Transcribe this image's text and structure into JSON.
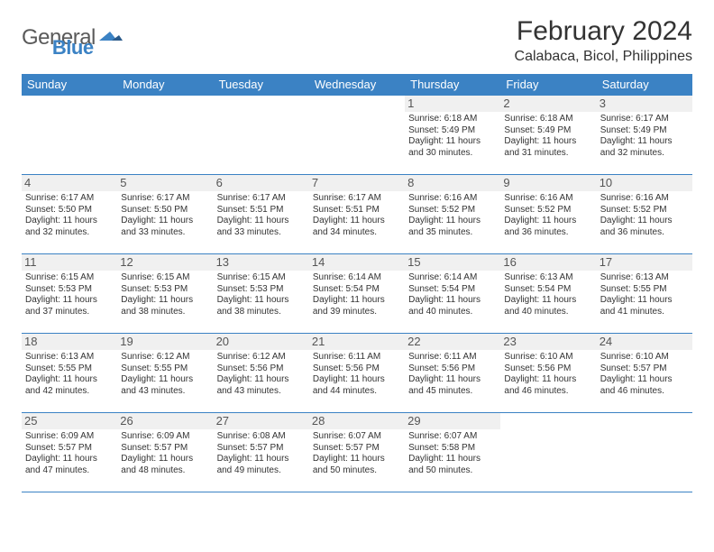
{
  "logo": {
    "text1": "General",
    "text2": "Blue"
  },
  "title": "February 2024",
  "location": "Calabaca, Bicol, Philippines",
  "headers": [
    "Sunday",
    "Monday",
    "Tuesday",
    "Wednesday",
    "Thursday",
    "Friday",
    "Saturday"
  ],
  "colors": {
    "headerBg": "#3b82c4",
    "headerText": "#ffffff",
    "border": "#3b82c4",
    "dayNumBg": "#f0f0f0",
    "text": "#333333"
  },
  "weeks": [
    [
      null,
      null,
      null,
      null,
      {
        "n": "1",
        "sr": "Sunrise: 6:18 AM",
        "ss": "Sunset: 5:49 PM",
        "dl": "Daylight: 11 hours and 30 minutes."
      },
      {
        "n": "2",
        "sr": "Sunrise: 6:18 AM",
        "ss": "Sunset: 5:49 PM",
        "dl": "Daylight: 11 hours and 31 minutes."
      },
      {
        "n": "3",
        "sr": "Sunrise: 6:17 AM",
        "ss": "Sunset: 5:49 PM",
        "dl": "Daylight: 11 hours and 32 minutes."
      }
    ],
    [
      {
        "n": "4",
        "sr": "Sunrise: 6:17 AM",
        "ss": "Sunset: 5:50 PM",
        "dl": "Daylight: 11 hours and 32 minutes."
      },
      {
        "n": "5",
        "sr": "Sunrise: 6:17 AM",
        "ss": "Sunset: 5:50 PM",
        "dl": "Daylight: 11 hours and 33 minutes."
      },
      {
        "n": "6",
        "sr": "Sunrise: 6:17 AM",
        "ss": "Sunset: 5:51 PM",
        "dl": "Daylight: 11 hours and 33 minutes."
      },
      {
        "n": "7",
        "sr": "Sunrise: 6:17 AM",
        "ss": "Sunset: 5:51 PM",
        "dl": "Daylight: 11 hours and 34 minutes."
      },
      {
        "n": "8",
        "sr": "Sunrise: 6:16 AM",
        "ss": "Sunset: 5:52 PM",
        "dl": "Daylight: 11 hours and 35 minutes."
      },
      {
        "n": "9",
        "sr": "Sunrise: 6:16 AM",
        "ss": "Sunset: 5:52 PM",
        "dl": "Daylight: 11 hours and 36 minutes."
      },
      {
        "n": "10",
        "sr": "Sunrise: 6:16 AM",
        "ss": "Sunset: 5:52 PM",
        "dl": "Daylight: 11 hours and 36 minutes."
      }
    ],
    [
      {
        "n": "11",
        "sr": "Sunrise: 6:15 AM",
        "ss": "Sunset: 5:53 PM",
        "dl": "Daylight: 11 hours and 37 minutes."
      },
      {
        "n": "12",
        "sr": "Sunrise: 6:15 AM",
        "ss": "Sunset: 5:53 PM",
        "dl": "Daylight: 11 hours and 38 minutes."
      },
      {
        "n": "13",
        "sr": "Sunrise: 6:15 AM",
        "ss": "Sunset: 5:53 PM",
        "dl": "Daylight: 11 hours and 38 minutes."
      },
      {
        "n": "14",
        "sr": "Sunrise: 6:14 AM",
        "ss": "Sunset: 5:54 PM",
        "dl": "Daylight: 11 hours and 39 minutes."
      },
      {
        "n": "15",
        "sr": "Sunrise: 6:14 AM",
        "ss": "Sunset: 5:54 PM",
        "dl": "Daylight: 11 hours and 40 minutes."
      },
      {
        "n": "16",
        "sr": "Sunrise: 6:13 AM",
        "ss": "Sunset: 5:54 PM",
        "dl": "Daylight: 11 hours and 40 minutes."
      },
      {
        "n": "17",
        "sr": "Sunrise: 6:13 AM",
        "ss": "Sunset: 5:55 PM",
        "dl": "Daylight: 11 hours and 41 minutes."
      }
    ],
    [
      {
        "n": "18",
        "sr": "Sunrise: 6:13 AM",
        "ss": "Sunset: 5:55 PM",
        "dl": "Daylight: 11 hours and 42 minutes."
      },
      {
        "n": "19",
        "sr": "Sunrise: 6:12 AM",
        "ss": "Sunset: 5:55 PM",
        "dl": "Daylight: 11 hours and 43 minutes."
      },
      {
        "n": "20",
        "sr": "Sunrise: 6:12 AM",
        "ss": "Sunset: 5:56 PM",
        "dl": "Daylight: 11 hours and 43 minutes."
      },
      {
        "n": "21",
        "sr": "Sunrise: 6:11 AM",
        "ss": "Sunset: 5:56 PM",
        "dl": "Daylight: 11 hours and 44 minutes."
      },
      {
        "n": "22",
        "sr": "Sunrise: 6:11 AM",
        "ss": "Sunset: 5:56 PM",
        "dl": "Daylight: 11 hours and 45 minutes."
      },
      {
        "n": "23",
        "sr": "Sunrise: 6:10 AM",
        "ss": "Sunset: 5:56 PM",
        "dl": "Daylight: 11 hours and 46 minutes."
      },
      {
        "n": "24",
        "sr": "Sunrise: 6:10 AM",
        "ss": "Sunset: 5:57 PM",
        "dl": "Daylight: 11 hours and 46 minutes."
      }
    ],
    [
      {
        "n": "25",
        "sr": "Sunrise: 6:09 AM",
        "ss": "Sunset: 5:57 PM",
        "dl": "Daylight: 11 hours and 47 minutes."
      },
      {
        "n": "26",
        "sr": "Sunrise: 6:09 AM",
        "ss": "Sunset: 5:57 PM",
        "dl": "Daylight: 11 hours and 48 minutes."
      },
      {
        "n": "27",
        "sr": "Sunrise: 6:08 AM",
        "ss": "Sunset: 5:57 PM",
        "dl": "Daylight: 11 hours and 49 minutes."
      },
      {
        "n": "28",
        "sr": "Sunrise: 6:07 AM",
        "ss": "Sunset: 5:57 PM",
        "dl": "Daylight: 11 hours and 50 minutes."
      },
      {
        "n": "29",
        "sr": "Sunrise: 6:07 AM",
        "ss": "Sunset: 5:58 PM",
        "dl": "Daylight: 11 hours and 50 minutes."
      },
      null,
      null
    ]
  ]
}
